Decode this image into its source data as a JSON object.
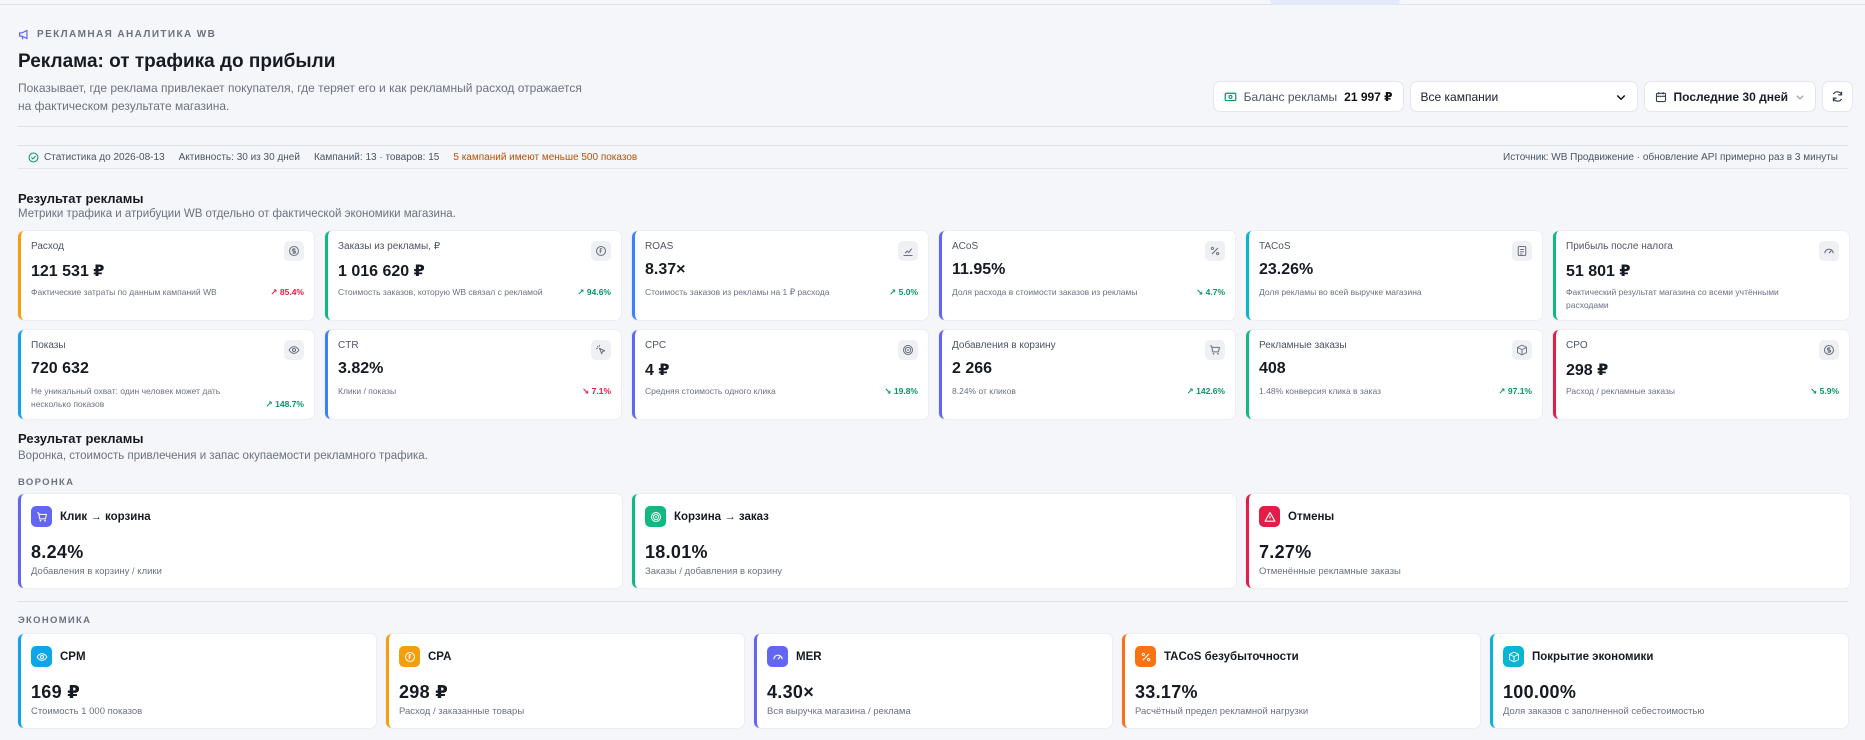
{
  "header": {
    "eyebrow": "РЕКЛАМНАЯ АНАЛИТИКА WB",
    "title": "Реклама: от трафика до прибыли",
    "subtitle": "Показывает, где реклама привлекает покупателя, где теряет его и как рекламный расход отражается на фактическом результате магазина."
  },
  "controls": {
    "balance_label": "Баланс рекламы",
    "balance_value": "21 997 ₽",
    "campaign_select": "Все кампании",
    "period": "Последние 30 дней"
  },
  "status": {
    "stats_until": "Статистика до 2026-08-13",
    "activity": "Активность: 30 из 30 дней",
    "campaigns": "Кампаний: 13 · товаров: 15",
    "warning": "5 кампаний имеют меньше 500 показов",
    "source": "Источник: WB Продвижение · обновление API примерно раз в 3 минуты"
  },
  "results": {
    "title": "Результат рекламы",
    "subtitle": "Метрики трафика и атрибуции WB отдельно от фактической экономики магазина.",
    "cards": [
      {
        "label": "Расход",
        "value": "121 531 ₽",
        "note": "Фактические затраты по данным кампаний WB",
        "change": "85.4%",
        "trend": "up-bad",
        "color": "#f59e0b",
        "icon": "dollar-icon"
      },
      {
        "label": "Заказы из рекламы, ₽",
        "value": "1 016 620 ₽",
        "note": "Стоимость заказов, которую WB связал с рекламой",
        "change": "94.6%",
        "trend": "up-good",
        "color": "#10b981",
        "icon": "coin-icon"
      },
      {
        "label": "ROAS",
        "value": "8.37×",
        "note": "Стоимость заказов из рекламы на 1 ₽ расхода",
        "change": "5.0%",
        "trend": "up-good",
        "color": "#3b82f6",
        "icon": "chart-icon"
      },
      {
        "label": "ACoS",
        "value": "11.95%",
        "note": "Доля расхода в стоимости заказов из рекламы",
        "change": "4.7%",
        "trend": "down-good",
        "color": "#6366f1",
        "icon": "percent-icon"
      },
      {
        "label": "TACoS",
        "value": "23.26%",
        "note": "Доля рекламы во всей выручке магазина",
        "change": "",
        "trend": "none",
        "color": "#06b6d4",
        "icon": "document-icon"
      },
      {
        "label": "Прибыль после налога",
        "value": "51 801 ₽",
        "note": "Фактический результат магазина со всеми учтёнными расходами",
        "change": "",
        "trend": "none",
        "color": "#10b981",
        "icon": "gauge-icon"
      },
      {
        "label": "Показы",
        "value": "720 632",
        "note": "Не уникальный охват: один человек может дать несколько показов",
        "change": "148.7%",
        "trend": "up-good",
        "color": "#0ea5e9",
        "icon": "eye-icon"
      },
      {
        "label": "CTR",
        "value": "3.82%",
        "note": "Клики / показы",
        "change": "7.1%",
        "trend": "down-bad",
        "color": "#3b82f6",
        "icon": "cursor-click-icon"
      },
      {
        "label": "CPC",
        "value": "4 ₽",
        "note": "Средняя стоимость одного клика",
        "change": "19.8%",
        "trend": "down-good",
        "color": "#6366f1",
        "icon": "target-icon"
      },
      {
        "label": "Добавления в корзину",
        "value": "2 266",
        "note": "8.24% от кликов",
        "change": "142.6%",
        "trend": "up-good",
        "color": "#6366f1",
        "icon": "cart-icon"
      },
      {
        "label": "Рекламные заказы",
        "value": "408",
        "note": "1.48% конверсия клика в заказ",
        "change": "97.1%",
        "trend": "up-good",
        "color": "#10b981",
        "icon": "box-icon"
      },
      {
        "label": "CPO",
        "value": "298 ₽",
        "note": "Расход / рекламные заказы",
        "change": "5.9%",
        "trend": "down-good",
        "color": "#e11d48",
        "icon": "dollar-icon"
      }
    ]
  },
  "funnel_section": {
    "title": "Результат рекламы",
    "subtitle": "Воронка, стоимость привлечения и запас окупаемости рекламного трафика.",
    "funnel_label": "ВОРОНКА",
    "economy_label": "ЭКОНОМИКА",
    "funnel": [
      {
        "title": "Клик → корзина",
        "value": "8.24%",
        "note": "Добавления в корзину / клики",
        "color": "#6366f1",
        "icon": "cart-icon"
      },
      {
        "title": "Корзина → заказ",
        "value": "18.01%",
        "note": "Заказы / добавления в корзину",
        "color": "#10b981",
        "icon": "target-icon"
      },
      {
        "title": "Отмены",
        "value": "7.27%",
        "note": "Отменённые рекламные заказы",
        "color": "#e11d48",
        "icon": "warning-icon"
      }
    ],
    "economy": [
      {
        "title": "CPM",
        "value": "169 ₽",
        "note": "Стоимость 1 000 показов",
        "color": "#0ea5e9",
        "icon": "eye-icon"
      },
      {
        "title": "CPA",
        "value": "298 ₽",
        "note": "Расход / заказанные товары",
        "color": "#f59e0b",
        "icon": "coin-icon"
      },
      {
        "title": "MER",
        "value": "4.30×",
        "note": "Вся выручка магазина / реклама",
        "color": "#6366f1",
        "icon": "gauge-icon"
      },
      {
        "title": "TACoS безубыточности",
        "value": "33.17%",
        "note": "Расчётный предел рекламной нагрузки",
        "color": "#f97316",
        "icon": "percent-icon"
      },
      {
        "title": "Покрытие экономики",
        "value": "100.00%",
        "note": "Доля заказов с заполненной себестоимостью",
        "color": "#06b6d4",
        "icon": "box-icon"
      }
    ]
  }
}
